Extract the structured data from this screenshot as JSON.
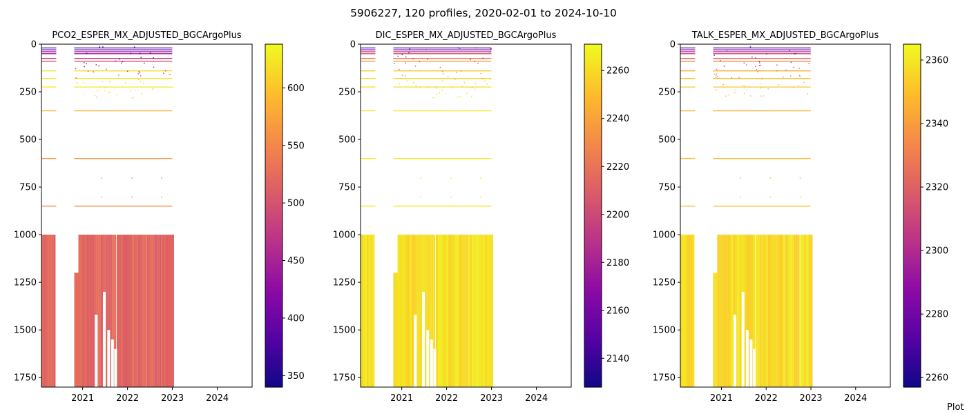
{
  "figure": {
    "suptitle": "5906227, 120 profiles, 2020-02-01 to 2024-10-10",
    "footer_text": "Plot"
  },
  "chart_data": [
    {
      "type": "heatmap",
      "title": "PCO2_ESPER_MX_ADJUSTED_BGCArgoPlus",
      "xlabel": "",
      "ylabel": "",
      "x_ticks": [
        "2021",
        "2022",
        "2023",
        "2024"
      ],
      "x_range": [
        "2020-02-01",
        "2024-10-10"
      ],
      "y_ticks": [
        0,
        250,
        500,
        750,
        1000,
        1250,
        1500,
        1750
      ],
      "ylim": [
        1800,
        0
      ],
      "y_inverted": true,
      "colormap": "plasma",
      "colorbar_ticks": [
        350,
        400,
        450,
        500,
        550,
        600
      ],
      "colorbar_range": [
        340,
        638
      ],
      "deep_value": 520,
      "depth_levels": [
        {
          "depth": 20,
          "value": 385
        },
        {
          "depth": 30,
          "value": 400
        },
        {
          "depth": 40,
          "value": 420
        },
        {
          "depth": 50,
          "value": 445
        },
        {
          "depth": 75,
          "value": 480
        },
        {
          "depth": 90,
          "value": 505
        },
        {
          "depth": 140,
          "value": 620
        },
        {
          "depth": 180,
          "value": 625
        },
        {
          "depth": 225,
          "value": 625
        },
        {
          "depth": 350,
          "value": 585
        },
        {
          "depth": 600,
          "value": 560
        },
        {
          "depth": 850,
          "value": 555
        }
      ]
    },
    {
      "type": "heatmap",
      "title": "DIC_ESPER_MX_ADJUSTED_BGCArgoPlus",
      "xlabel": "",
      "ylabel": "",
      "x_ticks": [
        "2021",
        "2022",
        "2023",
        "2024"
      ],
      "x_range": [
        "2020-02-01",
        "2024-10-10"
      ],
      "y_ticks": [
        0,
        250,
        500,
        750,
        1000,
        1250,
        1500,
        1750
      ],
      "ylim": [
        1800,
        0
      ],
      "y_inverted": true,
      "colormap": "plasma",
      "colorbar_ticks": [
        2140,
        2160,
        2180,
        2200,
        2220,
        2240,
        2260
      ],
      "colorbar_range": [
        2128,
        2271
      ],
      "deep_value": 2262,
      "depth_levels": [
        {
          "depth": 20,
          "value": 2150
        },
        {
          "depth": 30,
          "value": 2165
        },
        {
          "depth": 40,
          "value": 2185
        },
        {
          "depth": 50,
          "value": 2205
        },
        {
          "depth": 75,
          "value": 2225
        },
        {
          "depth": 90,
          "value": 2240
        },
        {
          "depth": 140,
          "value": 2255
        },
        {
          "depth": 180,
          "value": 2260
        },
        {
          "depth": 225,
          "value": 2262
        },
        {
          "depth": 350,
          "value": 2264
        },
        {
          "depth": 600,
          "value": 2266
        },
        {
          "depth": 850,
          "value": 2265
        }
      ]
    },
    {
      "type": "heatmap",
      "title": "TALK_ESPER_MX_ADJUSTED_BGCArgoPlus",
      "xlabel": "",
      "ylabel": "",
      "x_ticks": [
        "2021",
        "2022",
        "2023",
        "2024"
      ],
      "x_range": [
        "2020-02-01",
        "2024-10-10"
      ],
      "y_ticks": [
        0,
        250,
        500,
        750,
        1000,
        1250,
        1500,
        1750
      ],
      "ylim": [
        1800,
        0
      ],
      "y_inverted": true,
      "colormap": "plasma",
      "colorbar_ticks": [
        2260,
        2280,
        2300,
        2320,
        2340,
        2360
      ],
      "colorbar_range": [
        2257,
        2365
      ],
      "deep_value": 2358,
      "depth_levels": [
        {
          "depth": 20,
          "value": 2275
        },
        {
          "depth": 30,
          "value": 2285
        },
        {
          "depth": 40,
          "value": 2295
        },
        {
          "depth": 50,
          "value": 2310
        },
        {
          "depth": 75,
          "value": 2325
        },
        {
          "depth": 90,
          "value": 2335
        },
        {
          "depth": 140,
          "value": 2345
        },
        {
          "depth": 180,
          "value": 2350
        },
        {
          "depth": 225,
          "value": 2352
        },
        {
          "depth": 350,
          "value": 2345
        },
        {
          "depth": 600,
          "value": 2348
        },
        {
          "depth": 850,
          "value": 2350
        }
      ]
    }
  ]
}
